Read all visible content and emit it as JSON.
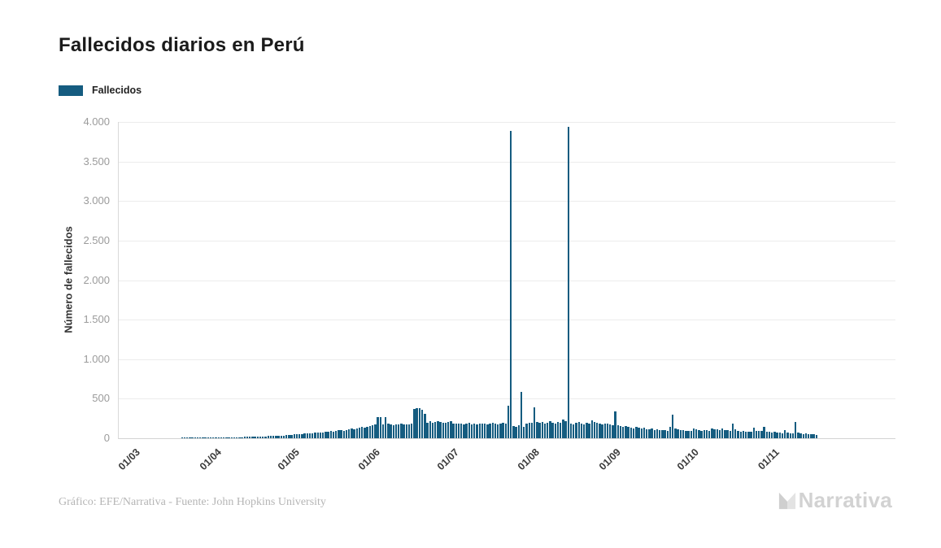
{
  "title": "Fallecidos diarios en Perú",
  "legend": {
    "label": "Fallecidos",
    "color": "#155C80"
  },
  "y_axis": {
    "title": "Número de fallecidos",
    "tick_labels_top_to_bottom": [
      "4.000",
      "3.500",
      "3.000",
      "2.500",
      "2.000",
      "1.500",
      "1.000",
      "500",
      "0"
    ],
    "max": 4000,
    "min": 0
  },
  "x_axis": {
    "tick_labels": [
      "01/03",
      "01/04",
      "01/05",
      "01/06",
      "01/07",
      "01/08",
      "01/09",
      "01/10",
      "01/11"
    ]
  },
  "footer": {
    "credit": "Gráfico: EFE/Narrativa - Fuente: John Hopkins University",
    "brand": "Narrativa",
    "brand_icon": "narrativa-n-logo"
  },
  "colors": {
    "bar": "#155C80",
    "gridline": "#ececec",
    "axis_line": "#d4d4d4",
    "y_tick_text": "#9b9b9b",
    "x_tick_text": "#3a3a3a",
    "title_text": "#1b1b1b",
    "credit_text": "#b5b5b5",
    "brand_text": "#d2d2d2",
    "background": "#ffffff"
  },
  "chart_data": {
    "type": "bar",
    "title": "Fallecidos diarios en Perú",
    "xlabel": "",
    "ylabel": "Número de fallecidos",
    "ylim": [
      0,
      4000
    ],
    "y_tick_step": 500,
    "grid": true,
    "legend": [
      "Fallecidos"
    ],
    "legend_position": "top-left",
    "start_date": "01/03",
    "frequency": "daily",
    "x_tick_labels": [
      "01/03",
      "01/04",
      "01/05",
      "01/06",
      "01/07",
      "01/08",
      "01/09",
      "01/10",
      "01/11"
    ],
    "x_tick_day_offsets": [
      0,
      31,
      61,
      92,
      122,
      153,
      184,
      214,
      245
    ],
    "series": [
      {
        "name": "Fallecidos",
        "values": [
          0,
          0,
          0,
          0,
          0,
          0,
          0,
          0,
          0,
          0,
          0,
          0,
          0,
          0,
          0,
          0,
          0,
          0,
          1,
          2,
          1,
          1,
          2,
          2,
          2,
          3,
          3,
          4,
          5,
          4,
          6,
          7,
          8,
          6,
          9,
          11,
          10,
          12,
          14,
          13,
          15,
          14,
          16,
          18,
          17,
          19,
          21,
          20,
          23,
          25,
          22,
          26,
          28,
          30,
          29,
          33,
          36,
          34,
          38,
          42,
          45,
          48,
          52,
          55,
          50,
          58,
          62,
          65,
          60,
          68,
          72,
          75,
          70,
          78,
          84,
          88,
          82,
          92,
          98,
          104,
          96,
          108,
          115,
          122,
          112,
          126,
          134,
          141,
          130,
          146,
          154,
          160,
          170,
          270,
          265,
          180,
          272,
          185,
          175,
          168,
          178,
          172,
          182,
          176,
          170,
          180,
          188,
          370,
          385,
          378,
          360,
          310,
          200,
          215,
          195,
          205,
          220,
          210,
          198,
          192,
          205,
          215,
          185,
          190,
          182,
          188,
          178,
          185,
          192,
          180,
          186,
          175,
          182,
          190,
          184,
          178,
          188,
          193,
          186,
          180,
          190,
          195,
          188,
          410,
          3887,
          155,
          148,
          160,
          590,
          145,
          188,
          195,
          200,
          390,
          205,
          195,
          210,
          188,
          198,
          215,
          192,
          185,
          205,
          198,
          236,
          218,
          3935,
          190,
          180,
          195,
          205,
          185,
          178,
          192,
          188,
          230,
          210,
          195,
          185,
          175,
          190,
          182,
          172,
          168,
          340,
          160,
          150,
          148,
          155,
          140,
          135,
          128,
          142,
          130,
          122,
          132,
          118,
          110,
          125,
          105,
          112,
          98,
          108,
          102,
          95,
          145,
          300,
          120,
          110,
          98,
          105,
          92,
          88,
          95,
          124,
          110,
          100,
          92,
          105,
          98,
          90,
          120,
          118,
          112,
          108,
          122,
          105,
          98,
          92,
          185,
          110,
          88,
          82,
          90,
          78,
          85,
          80,
          134,
          92,
          88,
          95,
          148,
          84,
          78,
          72,
          80,
          68,
          75,
          62,
          100,
          72,
          65,
          58,
          210,
          70,
          62,
          55,
          60,
          52,
          48,
          55,
          42
        ]
      }
    ]
  }
}
